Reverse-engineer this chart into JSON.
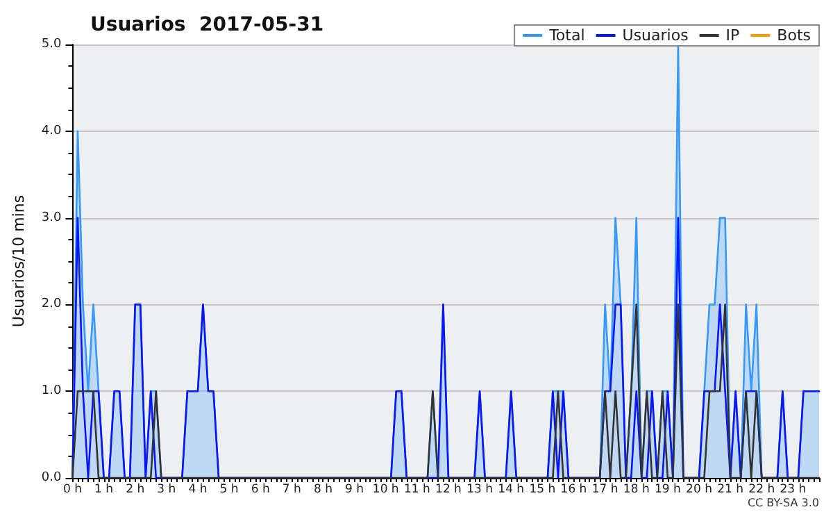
{
  "chart_data": {
    "type": "line",
    "title": "Usuarios  2017-05-31",
    "ylabel": "Usuarios/10 mins",
    "annotations": [
      "CC BY-SA 3.0"
    ],
    "categories": [
      "0 h",
      null,
      null,
      null,
      null,
      null,
      "1 h",
      null,
      null,
      null,
      null,
      null,
      "2 h",
      null,
      null,
      null,
      null,
      null,
      "3 h",
      null,
      null,
      null,
      null,
      null,
      "4 h",
      null,
      null,
      null,
      null,
      null,
      "5 h",
      null,
      null,
      null,
      null,
      null,
      "6 h",
      null,
      null,
      null,
      null,
      null,
      "7 h",
      null,
      null,
      null,
      null,
      null,
      "8 h",
      null,
      null,
      null,
      null,
      null,
      "9 h",
      null,
      null,
      null,
      null,
      null,
      "10 h",
      null,
      null,
      null,
      null,
      null,
      "11 h",
      null,
      null,
      null,
      null,
      null,
      "12 h",
      null,
      null,
      null,
      null,
      null,
      "13 h",
      null,
      null,
      null,
      null,
      null,
      "14 h",
      null,
      null,
      null,
      null,
      null,
      "15 h",
      null,
      null,
      null,
      null,
      null,
      "16 h",
      null,
      null,
      null,
      null,
      null,
      "17 h",
      null,
      null,
      null,
      null,
      null,
      "18 h",
      null,
      null,
      null,
      null,
      null,
      "19 h",
      null,
      null,
      null,
      null,
      null,
      "20 h",
      null,
      null,
      null,
      null,
      null,
      "21 h",
      null,
      null,
      null,
      null,
      null,
      "22 h",
      null,
      null,
      null,
      null,
      null,
      "23 h",
      null,
      null,
      null,
      null,
      null
    ],
    "series": [
      {
        "name": "Total",
        "type": "area",
        "color": "#3399ff",
        "values": [
          0,
          4,
          2,
          1,
          2,
          1,
          0,
          0,
          1,
          1,
          0,
          0,
          2,
          2,
          0,
          1,
          1,
          0,
          0,
          0,
          0,
          0,
          1,
          1,
          1,
          2,
          1,
          1,
          0,
          0,
          0,
          0,
          0,
          0,
          0,
          0,
          0,
          0,
          0,
          0,
          0,
          0,
          0,
          0,
          0,
          0,
          0,
          0,
          0,
          0,
          0,
          0,
          0,
          0,
          0,
          0,
          0,
          0,
          0,
          0,
          0,
          0,
          1,
          1,
          0,
          0,
          0,
          0,
          0,
          1,
          0,
          2,
          0,
          0,
          0,
          0,
          0,
          0,
          1,
          0,
          0,
          0,
          0,
          0,
          1,
          0,
          0,
          0,
          0,
          0,
          0,
          0,
          1,
          1,
          1,
          0,
          0,
          0,
          0,
          0,
          0,
          0,
          2,
          1,
          3,
          2,
          0,
          1,
          3,
          0,
          1,
          1,
          0,
          1,
          1,
          0,
          5,
          0,
          0,
          0,
          0,
          1,
          2,
          2,
          3,
          3,
          0,
          1,
          0,
          2,
          1,
          2,
          0,
          0,
          0,
          0,
          1,
          0,
          0,
          0,
          1,
          1,
          1,
          1
        ]
      },
      {
        "name": "Usuarios",
        "type": "line",
        "color": "#0a14ff",
        "values": [
          0,
          3,
          1,
          0,
          1,
          1,
          0,
          0,
          1,
          1,
          0,
          0,
          2,
          2,
          0,
          1,
          0,
          0,
          0,
          0,
          0,
          0,
          1,
          1,
          1,
          2,
          1,
          1,
          0,
          0,
          0,
          0,
          0,
          0,
          0,
          0,
          0,
          0,
          0,
          0,
          0,
          0,
          0,
          0,
          0,
          0,
          0,
          0,
          0,
          0,
          0,
          0,
          0,
          0,
          0,
          0,
          0,
          0,
          0,
          0,
          0,
          0,
          1,
          1,
          0,
          0,
          0,
          0,
          0,
          0,
          0,
          2,
          0,
          0,
          0,
          0,
          0,
          0,
          1,
          0,
          0,
          0,
          0,
          0,
          1,
          0,
          0,
          0,
          0,
          0,
          0,
          0,
          1,
          0,
          1,
          0,
          0,
          0,
          0,
          0,
          0,
          0,
          1,
          1,
          2,
          2,
          0,
          0,
          1,
          0,
          0,
          1,
          0,
          0,
          1,
          0,
          3,
          0,
          0,
          0,
          0,
          1,
          1,
          1,
          2,
          1,
          0,
          1,
          0,
          1,
          1,
          1,
          0,
          0,
          0,
          0,
          1,
          0,
          0,
          0,
          1,
          1,
          1,
          1
        ]
      },
      {
        "name": "IP",
        "type": "line",
        "color": "#333333",
        "values": [
          0,
          1,
          1,
          1,
          1,
          0,
          0,
          0,
          0,
          0,
          0,
          0,
          0,
          0,
          0,
          0,
          1,
          0,
          0,
          0,
          0,
          0,
          0,
          0,
          0,
          0,
          0,
          0,
          0,
          0,
          0,
          0,
          0,
          0,
          0,
          0,
          0,
          0,
          0,
          0,
          0,
          0,
          0,
          0,
          0,
          0,
          0,
          0,
          0,
          0,
          0,
          0,
          0,
          0,
          0,
          0,
          0,
          0,
          0,
          0,
          0,
          0,
          0,
          0,
          0,
          0,
          0,
          0,
          0,
          1,
          0,
          0,
          0,
          0,
          0,
          0,
          0,
          0,
          0,
          0,
          0,
          0,
          0,
          0,
          0,
          0,
          0,
          0,
          0,
          0,
          0,
          0,
          0,
          1,
          0,
          0,
          0,
          0,
          0,
          0,
          0,
          0,
          1,
          0,
          1,
          0,
          0,
          1,
          2,
          0,
          1,
          0,
          0,
          1,
          0,
          0,
          2,
          0,
          0,
          0,
          0,
          0,
          1,
          1,
          1,
          2,
          0,
          0,
          0,
          1,
          0,
          1,
          0,
          0,
          0,
          0,
          0,
          0,
          0,
          0,
          0,
          0,
          0,
          0
        ]
      },
      {
        "name": "Bots",
        "type": "line",
        "color": "#ff9900",
        "values": [
          null,
          null,
          null,
          null,
          null,
          null,
          null,
          null,
          null,
          null,
          null,
          null,
          null,
          null,
          null,
          null,
          null,
          null,
          null,
          null,
          null,
          null,
          null,
          null,
          null,
          null,
          null,
          null,
          null,
          null,
          null,
          null,
          null,
          null,
          null,
          null,
          null,
          null,
          null,
          null,
          null,
          null,
          null,
          null,
          null,
          null,
          null,
          null,
          null,
          null,
          null,
          null,
          null,
          null,
          null,
          null,
          null,
          null,
          null,
          null,
          null,
          null,
          null,
          null,
          null,
          null,
          null,
          null,
          null,
          null,
          null,
          null,
          null,
          null,
          null,
          null,
          null,
          null,
          null,
          null,
          null,
          null,
          null,
          null,
          null,
          null,
          null,
          null,
          null,
          null,
          null,
          null,
          null,
          null,
          null,
          null,
          null,
          null,
          null,
          null,
          null,
          null,
          null,
          null,
          null,
          null,
          null,
          null,
          null,
          null,
          null,
          null,
          null,
          null,
          null,
          null,
          null,
          null,
          null,
          null,
          null,
          null,
          null,
          null,
          null,
          null,
          null,
          null,
          null,
          null,
          null,
          null,
          null,
          null,
          null,
          null,
          null,
          null,
          null,
          null,
          null,
          null,
          null,
          null
        ]
      }
    ],
    "ylim": [
      0,
      5
    ],
    "yticks": [
      {
        "value": 0,
        "label": "0.0"
      },
      {
        "value": 1,
        "label": "1.0"
      },
      {
        "value": 2,
        "label": "2.0"
      },
      {
        "value": 3,
        "label": "3.0"
      },
      {
        "value": 4,
        "label": "4.0"
      },
      {
        "value": 5,
        "label": "5.0"
      }
    ],
    "grid": "y",
    "legend": "top right",
    "marker": "none",
    "line_style": "solid"
  }
}
